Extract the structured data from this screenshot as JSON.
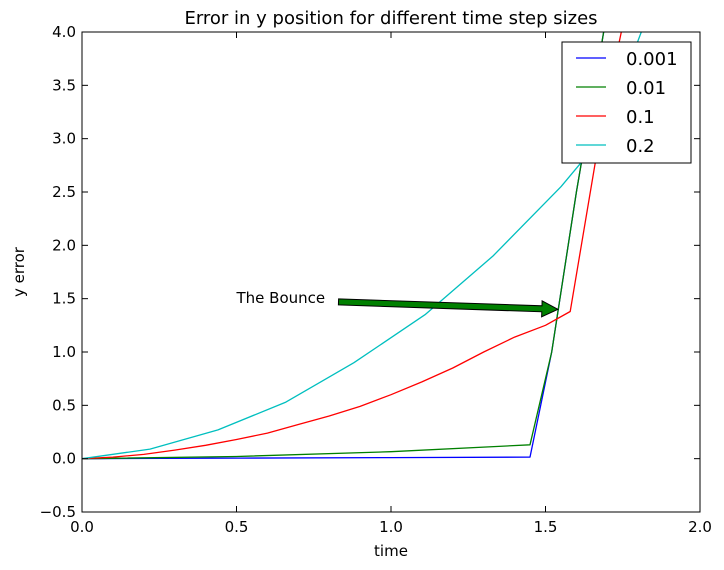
{
  "chart_data": {
    "type": "line",
    "title": "Error in y position for different time step sizes",
    "xlabel": "time",
    "ylabel": "y error",
    "xlim": [
      0.0,
      2.0
    ],
    "ylim": [
      -0.5,
      4.0
    ],
    "x_ticks": [
      "0.0",
      "0.5",
      "1.0",
      "1.5",
      "2.0"
    ],
    "y_ticks": [
      "−0.5",
      "0.0",
      "0.5",
      "1.0",
      "1.5",
      "2.0",
      "2.5",
      "3.0",
      "3.5",
      "4.0"
    ],
    "grid": false,
    "legend_position": "top-right",
    "series": [
      {
        "name": "0.001",
        "color": "#0000ff",
        "x": [
          0.0,
          0.5,
          1.0,
          1.45,
          1.52,
          1.6,
          1.7
        ],
        "y": [
          0.0,
          0.005,
          0.01,
          0.015,
          1.0,
          2.5,
          4.2
        ]
      },
      {
        "name": "0.01",
        "color": "#008000",
        "x": [
          0.0,
          0.5,
          1.0,
          1.45,
          1.52,
          1.6,
          1.7
        ],
        "y": [
          0.0,
          0.02,
          0.065,
          0.13,
          1.0,
          2.5,
          4.2
        ]
      },
      {
        "name": "0.1",
        "color": "#ff0000",
        "x": [
          0.0,
          0.1,
          0.2,
          0.3,
          0.4,
          0.5,
          0.6,
          0.7,
          0.8,
          0.9,
          1.0,
          1.1,
          1.2,
          1.3,
          1.4,
          1.5,
          1.58,
          1.68,
          1.76
        ],
        "y": [
          0.0,
          0.015,
          0.04,
          0.08,
          0.125,
          0.18,
          0.24,
          0.32,
          0.4,
          0.49,
          0.6,
          0.72,
          0.85,
          1.0,
          1.14,
          1.25,
          1.38,
          3.1,
          4.2
        ]
      },
      {
        "name": "0.2",
        "color": "#00bfbf",
        "x": [
          0.0,
          0.22,
          0.44,
          0.66,
          0.88,
          1.11,
          1.33,
          1.55,
          1.68,
          1.81
        ],
        "y": [
          0.0,
          0.09,
          0.27,
          0.53,
          0.9,
          1.35,
          1.9,
          2.55,
          3.0,
          4.0
        ]
      }
    ],
    "annotations": [
      {
        "text": "The Bounce",
        "text_x": 0.5,
        "text_y": 1.47,
        "arrow_from": [
          0.83,
          1.47
        ],
        "arrow_to": [
          1.54,
          1.4
        ],
        "arrow_color": "#008000"
      }
    ]
  }
}
